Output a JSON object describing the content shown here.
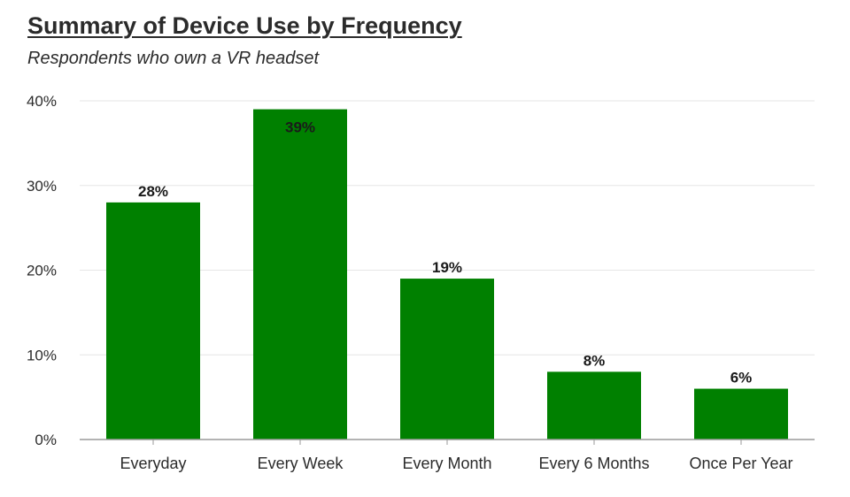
{
  "chart_data": {
    "type": "bar",
    "title": "Summary of Device Use by Frequency",
    "subtitle": "Respondents who own a VR headset",
    "categories": [
      "Everyday",
      "Every Week",
      "Every Month",
      "Every 6 Months",
      "Once Per Year"
    ],
    "values": [
      28,
      39,
      19,
      8,
      6
    ],
    "data_labels": [
      "28%",
      "39%",
      "19%",
      "8%",
      "6%"
    ],
    "ylim": [
      0,
      40
    ],
    "yticks": [
      0,
      10,
      20,
      30,
      40
    ],
    "ytick_labels": [
      "0%",
      "10%",
      "20%",
      "30%",
      "40%"
    ],
    "xlabel": "",
    "ylabel": "",
    "grid": true,
    "legend": "none",
    "bar_color": "#008000",
    "grid_color": "#e6e6e6",
    "axis_color": "#9a9a9a"
  }
}
